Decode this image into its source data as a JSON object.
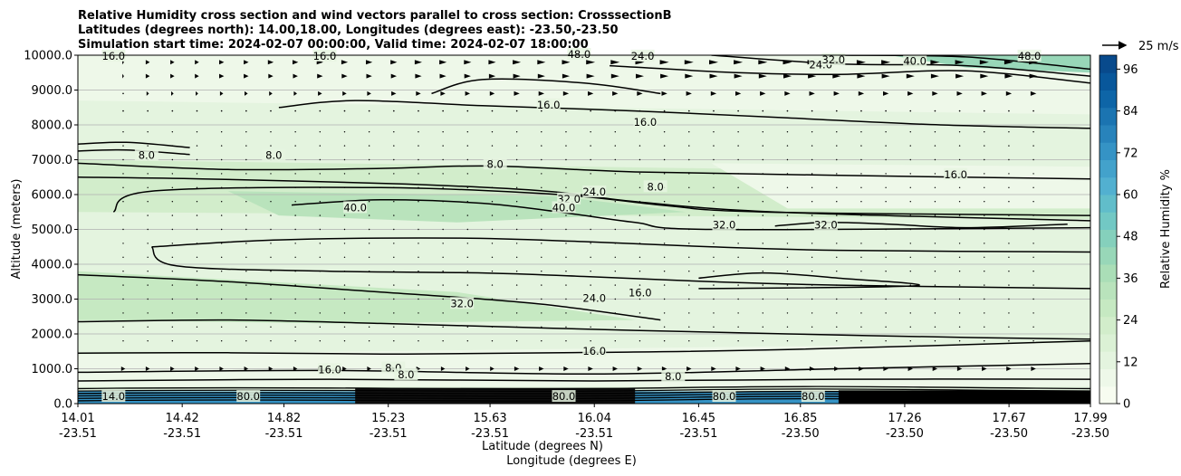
{
  "chart_data": {
    "type": "contour",
    "title_lines": [
      "Relative Humidity cross section and wind vectors parallel to cross section: CrosssectionB",
      "Latitudes (degrees north): 14.00,18.00, Longitudes (degrees east): -23.50,-23.50",
      "Simulation start time: 2024-02-07 00:00:00, Valid time: 2024-02-07 18:00:00"
    ],
    "ylabel": "Altitude (meters)",
    "xlabel_1": "Latitude (degrees N)",
    "xlabel_2": "Longitude (degrees E)",
    "ylim": [
      0,
      10000
    ],
    "xlim": [
      14.01,
      17.99
    ],
    "y_ticks": [
      "0.0",
      "1000.0",
      "2000.0",
      "3000.0",
      "4000.0",
      "5000.0",
      "6000.0",
      "7000.0",
      "8000.0",
      "9000.0",
      "10000.0"
    ],
    "y_tick_values": [
      0,
      1000,
      2000,
      3000,
      4000,
      5000,
      6000,
      7000,
      8000,
      9000,
      10000
    ],
    "x_tick_values": [
      14.01,
      14.42,
      14.82,
      15.23,
      15.63,
      16.04,
      16.45,
      16.85,
      17.26,
      17.67,
      17.99
    ],
    "x_ticks_lat": [
      "14.01",
      "14.42",
      "14.82",
      "15.23",
      "15.63",
      "16.04",
      "16.45",
      "16.85",
      "17.26",
      "17.67",
      "17.99"
    ],
    "x_ticks_lon": [
      "-23.51",
      "-23.51",
      "-23.51",
      "-23.51",
      "-23.51",
      "-23.51",
      "-23.51",
      "-23.50",
      "-23.50",
      "-23.50",
      "-23.50"
    ],
    "grid": "horizontal",
    "colorbar": {
      "label": "Relative Humidity %",
      "ticks": [
        "0",
        "12",
        "24",
        "36",
        "48",
        "60",
        "72",
        "84",
        "96"
      ],
      "tick_values": [
        0,
        12,
        24,
        36,
        48,
        60,
        72,
        84,
        96
      ],
      "range": [
        0,
        100
      ],
      "levels": 25,
      "colors": [
        "#f7fcf0",
        "#eef8e9",
        "#e4f4df",
        "#dbf1d5",
        "#d2edcb",
        "#c6e9c2",
        "#b9e3bc",
        "#aadeb7",
        "#98d7b8",
        "#85d0bc",
        "#72c8c4",
        "#61bdca",
        "#52b0d0",
        "#43a2cb",
        "#3593c5",
        "#2883bb",
        "#1b74b1",
        "#0e65a7",
        "#08579b",
        "#084a8c"
      ]
    },
    "quiver_key": {
      "label": "25 m/s",
      "value": 25
    },
    "contour_lines": [
      {
        "level": 8,
        "points": [
          [
            14.01,
            7450
          ],
          [
            14.2,
            7500
          ],
          [
            14.45,
            7350
          ]
        ]
      },
      {
        "level": 8,
        "points": [
          [
            14.01,
            7250
          ],
          [
            14.2,
            7280
          ],
          [
            14.45,
            7150
          ]
        ]
      },
      {
        "level": 8,
        "points": [
          [
            14.01,
            6900
          ],
          [
            14.6,
            6720
          ],
          [
            15.2,
            6750
          ],
          [
            15.63,
            6820
          ],
          [
            16.2,
            6650
          ],
          [
            17.0,
            6550
          ],
          [
            17.99,
            6450
          ]
        ]
      },
      {
        "level": 32,
        "points": [
          [
            14.01,
            6500
          ],
          [
            14.5,
            6450
          ],
          [
            15.3,
            6300
          ],
          [
            15.85,
            6100
          ],
          [
            16.2,
            5800
          ],
          [
            16.75,
            5500
          ],
          [
            17.99,
            5250
          ]
        ]
      },
      {
        "level": 24,
        "points": [
          [
            14.15,
            5500
          ],
          [
            14.3,
            6100
          ],
          [
            15.2,
            6200
          ],
          [
            15.9,
            6000
          ],
          [
            16.3,
            5700
          ],
          [
            16.7,
            5500
          ],
          [
            17.99,
            5400
          ]
        ]
      },
      {
        "level": 40,
        "points": [
          [
            14.85,
            5700
          ],
          [
            15.2,
            5850
          ],
          [
            15.6,
            5750
          ],
          [
            15.9,
            5500
          ],
          [
            16.2,
            5200
          ],
          [
            16.5,
            5000
          ],
          [
            17.99,
            5050
          ]
        ]
      },
      {
        "level": 32,
        "points": [
          [
            14.3,
            4500
          ],
          [
            14.8,
            4700
          ],
          [
            15.5,
            4750
          ],
          [
            16.0,
            4650
          ],
          [
            16.5,
            4500
          ],
          [
            17.0,
            4400
          ],
          [
            17.99,
            4350
          ]
        ]
      },
      {
        "level": 24,
        "points": [
          [
            14.3,
            4500
          ],
          [
            14.4,
            3950
          ],
          [
            15.0,
            3800
          ],
          [
            15.6,
            3750
          ],
          [
            16.0,
            3650
          ],
          [
            16.5,
            3500
          ],
          [
            17.0,
            3400
          ],
          [
            17.99,
            3300
          ]
        ]
      },
      {
        "level": 32,
        "points": [
          [
            14.01,
            3700
          ],
          [
            14.6,
            3500
          ],
          [
            15.2,
            3200
          ],
          [
            15.6,
            3000
          ],
          [
            15.9,
            2800
          ],
          [
            16.3,
            2400
          ]
        ]
      },
      {
        "level": 24,
        "points": [
          [
            14.01,
            2350
          ],
          [
            14.6,
            2400
          ],
          [
            15.2,
            2300
          ],
          [
            15.7,
            2200
          ],
          [
            16.2,
            2100
          ],
          [
            16.8,
            2000
          ],
          [
            17.5,
            1900
          ],
          [
            17.99,
            1850
          ]
        ]
      },
      {
        "level": 16,
        "points": [
          [
            14.01,
            1450
          ],
          [
            14.6,
            1460
          ],
          [
            15.3,
            1420
          ],
          [
            16.04,
            1470
          ],
          [
            16.8,
            1550
          ],
          [
            17.99,
            1800
          ]
        ]
      },
      {
        "level": 16,
        "points": [
          [
            16.45,
            3600
          ],
          [
            16.7,
            3750
          ],
          [
            17.0,
            3600
          ],
          [
            17.3,
            3380
          ],
          [
            16.45,
            3300
          ]
        ]
      },
      {
        "level": 16,
        "points": [
          [
            16.75,
            5100
          ],
          [
            16.95,
            5200
          ],
          [
            17.2,
            5150
          ],
          [
            17.5,
            5050
          ],
          [
            17.9,
            5150
          ]
        ]
      },
      {
        "level": 16,
        "points": [
          [
            14.8,
            8500
          ],
          [
            15.1,
            8700
          ],
          [
            15.6,
            8550
          ],
          [
            16.2,
            8400
          ],
          [
            16.8,
            8200
          ],
          [
            17.4,
            8000
          ],
          [
            17.99,
            7900
          ]
        ]
      },
      {
        "level": 16,
        "points": [
          [
            15.4,
            8900
          ],
          [
            15.6,
            9300
          ],
          [
            16.0,
            9200
          ],
          [
            16.3,
            8900
          ]
        ]
      },
      {
        "level": 24,
        "points": [
          [
            16.1,
            9700
          ],
          [
            16.6,
            9500
          ],
          [
            17.0,
            9450
          ],
          [
            17.5,
            9550
          ],
          [
            17.99,
            9200
          ]
        ]
      },
      {
        "level": 32,
        "points": [
          [
            16.5,
            10000
          ],
          [
            17.0,
            9750
          ],
          [
            17.5,
            9700
          ],
          [
            17.99,
            9400
          ]
        ]
      },
      {
        "level": 40,
        "points": [
          [
            17.0,
            10000
          ],
          [
            17.5,
            9950
          ],
          [
            17.99,
            9600
          ]
        ]
      },
      {
        "level": 16,
        "points": [
          [
            14.01,
            900
          ],
          [
            15.0,
            950
          ],
          [
            16.04,
            850
          ],
          [
            17.0,
            1000
          ],
          [
            17.99,
            1150
          ]
        ]
      },
      {
        "level": 8,
        "points": [
          [
            14.01,
            650
          ],
          [
            15.0,
            700
          ],
          [
            16.04,
            650
          ],
          [
            17.0,
            700
          ],
          [
            17.99,
            700
          ]
        ]
      }
    ],
    "contour_labels": [
      {
        "text": "8.0",
        "x": 14.28,
        "y": 7100
      },
      {
        "text": "8.0",
        "x": 14.78,
        "y": 7100
      },
      {
        "text": "8.0",
        "x": 15.65,
        "y": 6850
      },
      {
        "text": "8.0",
        "x": 16.28,
        "y": 6200
      },
      {
        "text": "8.0",
        "x": 15.25,
        "y": 1000
      },
      {
        "text": "8.0",
        "x": 15.3,
        "y": 800
      },
      {
        "text": "8.0",
        "x": 16.35,
        "y": 750
      },
      {
        "text": "16.0",
        "x": 14.15,
        "y": 9950
      },
      {
        "text": "16.0",
        "x": 14.98,
        "y": 9950
      },
      {
        "text": "16.0",
        "x": 15.86,
        "y": 8550
      },
      {
        "text": "16.0",
        "x": 16.24,
        "y": 8050
      },
      {
        "text": "16.0",
        "x": 17.46,
        "y": 6550
      },
      {
        "text": "16.0",
        "x": 16.22,
        "y": 3150
      },
      {
        "text": "16.0",
        "x": 16.04,
        "y": 1480
      },
      {
        "text": "16.0",
        "x": 15.0,
        "y": 950
      },
      {
        "text": "24.0",
        "x": 16.23,
        "y": 9950
      },
      {
        "text": "24.0",
        "x": 16.93,
        "y": 9700
      },
      {
        "text": "24.0",
        "x": 16.04,
        "y": 6050
      },
      {
        "text": "24.0",
        "x": 16.04,
        "y": 3000
      },
      {
        "text": "32.0",
        "x": 16.98,
        "y": 9850
      },
      {
        "text": "32.0",
        "x": 15.94,
        "y": 5850
      },
      {
        "text": "32.0",
        "x": 16.55,
        "y": 5100
      },
      {
        "text": "32.0",
        "x": 16.95,
        "y": 5100
      },
      {
        "text": "32.0",
        "x": 15.52,
        "y": 2850
      },
      {
        "text": "40.0",
        "x": 17.3,
        "y": 9800
      },
      {
        "text": "40.0",
        "x": 15.1,
        "y": 5600
      },
      {
        "text": "40.0",
        "x": 15.92,
        "y": 5600
      },
      {
        "text": "48.0",
        "x": 17.75,
        "y": 9950
      },
      {
        "text": "48.0",
        "x": 15.98,
        "y": 10000
      }
    ],
    "surface_labels": [
      {
        "text": "14.0",
        "x": 14.15,
        "y": 180
      },
      {
        "text": "80.0",
        "x": 14.68,
        "y": 180
      },
      {
        "text": "80.0",
        "x": 15.92,
        "y": 180
      },
      {
        "text": "80.0",
        "x": 16.55,
        "y": 180
      },
      {
        "text": "80.0",
        "x": 16.9,
        "y": 180
      }
    ],
    "wind_vectors": {
      "note": "eastward (parallel) wind component in m/s; rows by altitude",
      "rows": [
        {
          "alt": 9800,
          "u": [
            2,
            5,
            5,
            5,
            6,
            6,
            7,
            7,
            8,
            8,
            8,
            8,
            9,
            9,
            9,
            9,
            10,
            10,
            10,
            11,
            11,
            12,
            12,
            12,
            12,
            12,
            12,
            12,
            12,
            12,
            12,
            12,
            12,
            12,
            12,
            12,
            12,
            12
          ]
        },
        {
          "alt": 9400,
          "u": [
            2,
            5,
            5,
            5,
            6,
            6,
            6,
            6,
            7,
            7,
            7,
            7,
            8,
            8,
            8,
            8,
            9,
            9,
            9,
            10,
            10,
            10,
            10,
            10,
            10,
            10,
            10,
            10,
            10,
            10,
            10,
            10,
            10,
            10,
            10,
            10,
            10,
            10
          ]
        },
        {
          "alt": 8900,
          "u": [
            1,
            3,
            3,
            3,
            4,
            4,
            4,
            4,
            5,
            5,
            5,
            6,
            6,
            6,
            6,
            6,
            7,
            7,
            7,
            7,
            7,
            7,
            7,
            7,
            7,
            7,
            7,
            7,
            7,
            7,
            7,
            7,
            7,
            7,
            7,
            7,
            7,
            7
          ]
        },
        {
          "alt": 8400,
          "u": [
            1,
            1,
            1,
            1,
            1,
            1,
            1,
            1,
            1,
            1,
            1,
            1,
            1,
            1,
            1,
            1,
            1,
            1,
            1,
            1,
            1,
            1,
            1,
            1,
            1,
            1,
            1,
            1,
            1,
            1,
            1,
            1,
            1,
            1,
            1,
            1,
            1,
            1
          ]
        },
        {
          "alt": 1000,
          "u": [
            5,
            5,
            5,
            5,
            5,
            5,
            5,
            5,
            5,
            5,
            5,
            5,
            5,
            5,
            5,
            5,
            6,
            6,
            6,
            6,
            6,
            6,
            6,
            6,
            6,
            6,
            6,
            6,
            6,
            6,
            6,
            6,
            6,
            6,
            6,
            6,
            6,
            6
          ]
        }
      ]
    }
  }
}
